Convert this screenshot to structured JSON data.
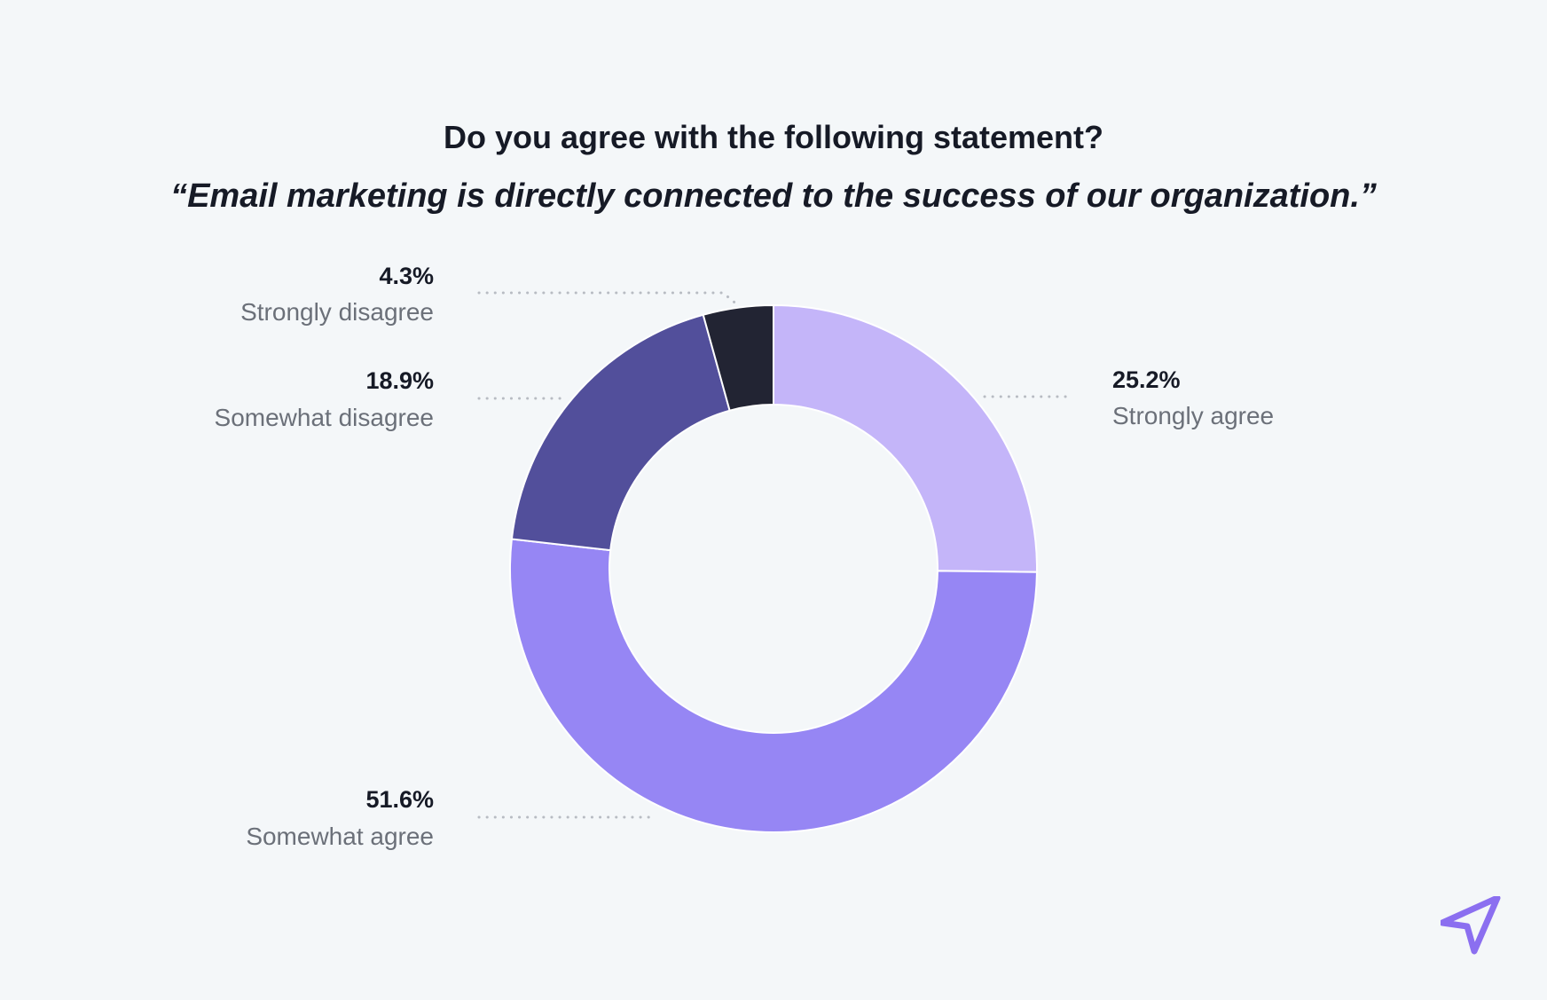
{
  "colors": {
    "background": "#f4f7f9",
    "strongly_agree": "#c4b5f9",
    "somewhat_agree": "#9686f4",
    "somewhat_disagree": "#524f9b",
    "strongly_disagree": "#222433",
    "leader": "#b8bcc3",
    "logo": "#8b6ff0"
  },
  "logo": {
    "icon": "paper-plane-icon"
  },
  "chart_data": {
    "type": "pie",
    "variant": "donut",
    "title": "Do you agree with the following statement?",
    "subtitle": "“Email marketing is directly connected to the success of our organization.”",
    "slices": [
      {
        "key": "strongly_agree",
        "label": "Strongly agree",
        "value": 25.2,
        "display": "25.2%"
      },
      {
        "key": "somewhat_agree",
        "label": "Somewhat agree",
        "value": 51.6,
        "display": "51.6%"
      },
      {
        "key": "somewhat_disagree",
        "label": "Somewhat disagree",
        "value": 18.9,
        "display": "18.9%"
      },
      {
        "key": "strongly_disagree",
        "label": "Strongly disagree",
        "value": 4.3,
        "display": "4.3%"
      }
    ]
  }
}
